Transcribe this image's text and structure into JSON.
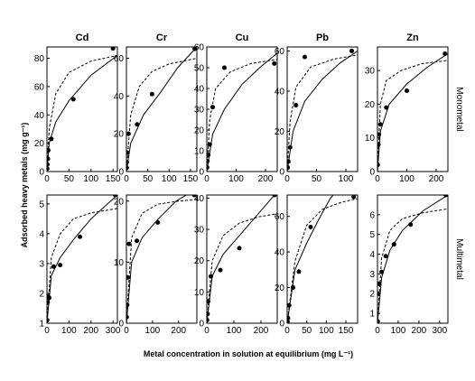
{
  "y_label": "Adsorbed heavy metals (mg g⁻¹)",
  "x_label": "Metal concentration in solution at equilibrium (mg L⁻¹)",
  "row_labels": [
    "Monometal",
    "Multimetal"
  ],
  "chart_data": [
    {
      "type": "scatter",
      "title": "Cd",
      "xlim": [
        0,
        160
      ],
      "xticks": [
        0,
        50,
        100,
        150
      ],
      "ylim": [
        0,
        88
      ],
      "yticks": [
        0,
        20,
        40,
        60,
        80
      ],
      "series": [
        {
          "style": "points",
          "color": "#000000",
          "x": [
            0.5,
            1,
            2,
            3,
            10,
            60,
            150
          ],
          "values": [
            2,
            5,
            9,
            15,
            23,
            51,
            87
          ]
        },
        {
          "style": "solid",
          "color": "#000000",
          "x": [
            0,
            5,
            20,
            50,
            100,
            160
          ],
          "values": [
            0,
            20,
            35,
            50,
            68,
            82
          ]
        },
        {
          "style": "dashed",
          "color": "#000000",
          "x": [
            0,
            5,
            20,
            50,
            100,
            160
          ],
          "values": [
            0,
            30,
            55,
            70,
            78,
            82
          ]
        }
      ]
    },
    {
      "type": "scatter",
      "title": "Cr",
      "xlim": [
        0,
        165
      ],
      "xticks": [
        0,
        50,
        100,
        150
      ],
      "ylim": [
        0,
        66
      ],
      "yticks": [
        0,
        20,
        40,
        60
      ],
      "series": [
        {
          "style": "points",
          "color": "#000000",
          "x": [
            0.5,
            1,
            2,
            5,
            25,
            60,
            160
          ],
          "values": [
            2,
            5,
            10,
            20,
            25,
            41,
            65
          ]
        },
        {
          "style": "solid",
          "color": "#000000",
          "x": [
            0,
            10,
            40,
            80,
            120,
            165
          ],
          "values": [
            0,
            15,
            30,
            42,
            55,
            66
          ]
        },
        {
          "style": "dashed",
          "color": "#000000",
          "x": [
            0,
            10,
            30,
            60,
            100,
            165
          ],
          "values": [
            0,
            30,
            45,
            53,
            57,
            60
          ]
        }
      ]
    },
    {
      "type": "scatter",
      "title": "Cu",
      "xlim": [
        0,
        240
      ],
      "xticks": [
        0,
        100,
        200
      ],
      "ylim": [
        0,
        60
      ],
      "yticks": [
        0,
        10,
        20,
        30,
        40,
        50,
        60
      ],
      "series": [
        {
          "style": "points",
          "color": "#000000",
          "x": [
            1,
            2,
            5,
            10,
            20,
            60,
            230
          ],
          "values": [
            2,
            5,
            8,
            13,
            31,
            50,
            52
          ]
        },
        {
          "style": "solid",
          "color": "#000000",
          "x": [
            0,
            20,
            60,
            120,
            180,
            240
          ],
          "values": [
            0,
            18,
            30,
            42,
            50,
            57
          ]
        },
        {
          "style": "dashed",
          "color": "#000000",
          "x": [
            0,
            10,
            30,
            80,
            150,
            240
          ],
          "values": [
            0,
            25,
            40,
            48,
            52,
            54
          ]
        }
      ]
    },
    {
      "type": "scatter",
      "title": "Pb",
      "xlim": [
        0,
        120
      ],
      "xticks": [
        0,
        50,
        100
      ],
      "ylim": [
        0,
        62
      ],
      "yticks": [
        0,
        20,
        40,
        60
      ],
      "series": [
        {
          "style": "points",
          "color": "#000000",
          "x": [
            1,
            2,
            5,
            15,
            30,
            110
          ],
          "values": [
            2,
            5,
            12,
            33,
            57,
            60
          ]
        },
        {
          "style": "solid",
          "color": "#000000",
          "x": [
            0,
            10,
            30,
            60,
            90,
            120
          ],
          "values": [
            0,
            20,
            35,
            46,
            54,
            60
          ]
        },
        {
          "style": "dashed",
          "color": "#000000",
          "x": [
            0,
            5,
            15,
            40,
            80,
            120
          ],
          "values": [
            0,
            25,
            42,
            52,
            56,
            58
          ]
        }
      ]
    },
    {
      "type": "scatter",
      "title": "Zn",
      "xlim": [
        0,
        240
      ],
      "xticks": [
        0,
        100,
        200
      ],
      "ylim": [
        0,
        37
      ],
      "yticks": [
        0,
        10,
        20,
        30
      ],
      "series": [
        {
          "style": "points",
          "color": "#000000",
          "x": [
            1,
            3,
            5,
            10,
            30,
            100,
            230
          ],
          "values": [
            2,
            8,
            11,
            14,
            19,
            24,
            35
          ]
        },
        {
          "style": "solid",
          "color": "#000000",
          "x": [
            0,
            10,
            40,
            100,
            170,
            240
          ],
          "values": [
            0,
            12,
            20,
            26,
            31,
            35
          ]
        },
        {
          "style": "dashed",
          "color": "#000000",
          "x": [
            0,
            10,
            30,
            80,
            150,
            240
          ],
          "values": [
            0,
            20,
            27,
            30,
            32,
            33
          ]
        }
      ]
    },
    {
      "type": "scatter",
      "xlim": [
        0,
        320
      ],
      "xticks": [
        0,
        100,
        200,
        300
      ],
      "ylim": [
        1,
        5.3
      ],
      "yticks": [
        1,
        2,
        3,
        4,
        5
      ],
      "series": [
        {
          "style": "points",
          "color": "#000000",
          "x": [
            1,
            3,
            5,
            10,
            30,
            60,
            150,
            310
          ],
          "values": [
            1.1,
            1.7,
            1.9,
            1.85,
            2.9,
            2.95,
            3.9,
            5.3
          ]
        },
        {
          "style": "solid",
          "color": "#000000",
          "x": [
            0,
            20,
            60,
            120,
            200,
            320
          ],
          "values": [
            1,
            2.6,
            3.2,
            3.8,
            4.5,
            5.3
          ]
        },
        {
          "style": "dashed",
          "color": "#000000",
          "x": [
            0,
            20,
            60,
            120,
            200,
            320
          ],
          "values": [
            1,
            3.2,
            4,
            4.5,
            4.7,
            4.85
          ]
        }
      ]
    },
    {
      "type": "scatter",
      "xlim": [
        0,
        270
      ],
      "xticks": [
        0,
        100,
        200
      ],
      "ylim": [
        0,
        21
      ],
      "yticks": [
        0,
        10,
        20
      ],
      "series": [
        {
          "style": "points",
          "color": "#000000",
          "x": [
            1,
            3,
            5,
            10,
            40,
            120,
            260
          ],
          "values": [
            1,
            3,
            7.5,
            13,
            13.5,
            16.5,
            21
          ]
        },
        {
          "style": "solid",
          "color": "#000000",
          "x": [
            0,
            20,
            60,
            120,
            190,
            270
          ],
          "values": [
            0,
            10,
            14,
            17,
            20,
            22
          ]
        },
        {
          "style": "dashed",
          "color": "#000000",
          "x": [
            0,
            20,
            60,
            120,
            200,
            270
          ],
          "values": [
            0,
            14,
            18,
            19.5,
            20,
            20.3
          ]
        }
      ]
    },
    {
      "type": "scatter",
      "xlim": [
        0,
        260
      ],
      "xticks": [
        0,
        100,
        200
      ],
      "ylim": [
        0,
        41
      ],
      "yticks": [
        0,
        10,
        20,
        30,
        40
      ],
      "series": [
        {
          "style": "points",
          "color": "#000000",
          "x": [
            1,
            3,
            5,
            15,
            50,
            120,
            250
          ],
          "values": [
            1,
            3,
            7,
            15,
            17,
            24,
            41
          ]
        },
        {
          "style": "solid",
          "color": "#000000",
          "x": [
            0,
            20,
            60,
            120,
            190,
            260
          ],
          "values": [
            0,
            15,
            22,
            28,
            35,
            42
          ]
        },
        {
          "style": "dashed",
          "color": "#000000",
          "x": [
            0,
            20,
            60,
            120,
            190,
            260
          ],
          "values": [
            0,
            20,
            28,
            32,
            34,
            35
          ]
        }
      ]
    },
    {
      "type": "scatter",
      "xlim": [
        0,
        180
      ],
      "xticks": [
        0,
        50,
        100,
        150
      ],
      "ylim": [
        0,
        72
      ],
      "yticks": [
        0,
        20,
        40,
        60
      ],
      "series": [
        {
          "style": "points",
          "color": "#000000",
          "x": [
            1,
            2,
            5,
            15,
            30,
            60,
            170
          ],
          "values": [
            1,
            3,
            10,
            20,
            29,
            54,
            71
          ]
        },
        {
          "style": "solid",
          "color": "#000000",
          "x": [
            0,
            20,
            50,
            80,
            110,
            130
          ],
          "values": [
            0,
            30,
            45,
            58,
            70,
            75
          ]
        },
        {
          "style": "dashed",
          "color": "#000000",
          "x": [
            0,
            20,
            50,
            90,
            140,
            180
          ],
          "values": [
            0,
            35,
            55,
            64,
            68,
            70
          ]
        }
      ]
    },
    {
      "type": "scatter",
      "xlim": [
        0,
        340
      ],
      "xticks": [
        0,
        100,
        200,
        300
      ],
      "ylim": [
        0.5,
        7
      ],
      "yticks": [
        1,
        2,
        3,
        4,
        5,
        6
      ],
      "series": [
        {
          "style": "points",
          "color": "#000000",
          "x": [
            1,
            3,
            8,
            20,
            40,
            80,
            160,
            330
          ],
          "values": [
            0.6,
            2,
            2.5,
            3.1,
            3.9,
            4.5,
            5.5,
            7
          ]
        },
        {
          "style": "solid",
          "color": "#000000",
          "x": [
            0,
            20,
            60,
            120,
            220,
            340
          ],
          "values": [
            0.5,
            2.8,
            4.2,
            5.2,
            6.2,
            7
          ]
        },
        {
          "style": "dashed",
          "color": "#000000",
          "x": [
            0,
            20,
            60,
            120,
            220,
            340
          ],
          "values": [
            0.5,
            3.8,
            5.2,
            5.8,
            6.1,
            6.3
          ]
        }
      ]
    }
  ]
}
